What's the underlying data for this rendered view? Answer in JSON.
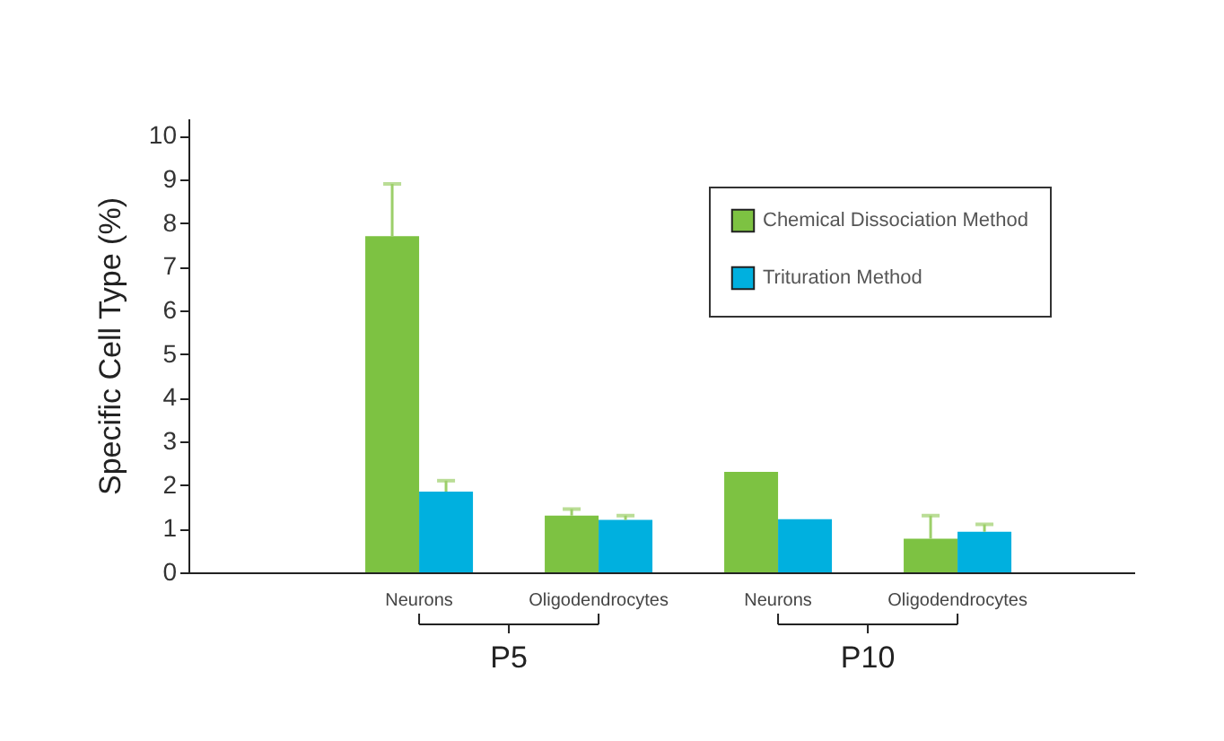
{
  "chart_data": {
    "type": "bar",
    "ylabel": "Specific Cell Type (%)",
    "categories": [
      "Neurons",
      "Oligodendrocytes",
      "Neurons",
      "Oligodendrocytes"
    ],
    "series": [
      {
        "name": "Chemical Dissociation Method",
        "color": "#7dc242",
        "values": [
          7.7,
          1.3,
          2.3,
          0.77
        ],
        "errors": [
          [
            7.7,
            8.9
          ],
          [
            1.3,
            1.45
          ],
          null,
          [
            0.77,
            1.3
          ]
        ]
      },
      {
        "name": "Trituration Method",
        "color": "#00b0df",
        "values": [
          1.85,
          1.2,
          1.22,
          0.93
        ],
        "errors": [
          [
            1.85,
            2.1
          ],
          [
            1.2,
            1.3
          ],
          null,
          [
            0.93,
            1.1
          ]
        ]
      }
    ],
    "ylim": [
      0,
      10.4
    ],
    "yticks": [
      0,
      1,
      2,
      3,
      4,
      5,
      6,
      7,
      8,
      9,
      10
    ],
    "legend": "top right",
    "grid": false,
    "annotations": [
      "P5",
      "P10"
    ]
  }
}
